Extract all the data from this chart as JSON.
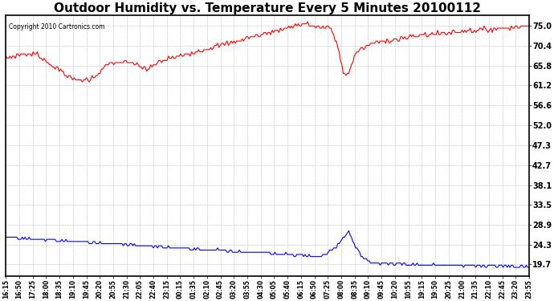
{
  "title": "Outdoor Humidity vs. Temperature Every 5 Minutes 20100112",
  "copyright_text": "Copyright 2010 Cartronics.com",
  "title_fontsize": 11,
  "yticks": [
    19.7,
    24.3,
    28.9,
    33.5,
    38.1,
    42.7,
    47.3,
    52.0,
    56.6,
    61.2,
    65.8,
    70.4,
    75.0
  ],
  "ylim": [
    17.0,
    77.5
  ],
  "background_color": "#ffffff",
  "plot_bg_color": "#ffffff",
  "grid_color": "#aaaaaa",
  "red_color": "#ff0000",
  "blue_color": "#0000ff",
  "xtick_labels": [
    "16:15",
    "16:50",
    "17:25",
    "18:00",
    "18:35",
    "19:10",
    "19:45",
    "20:20",
    "20:55",
    "21:30",
    "22:05",
    "22:40",
    "23:15",
    "00:15",
    "01:35",
    "02:10",
    "02:45",
    "03:20",
    "03:55",
    "04:30",
    "05:05",
    "05:40",
    "06:15",
    "06:50",
    "07:25",
    "08:00",
    "08:35",
    "09:10",
    "09:45",
    "10:20",
    "10:55",
    "19:15",
    "19:50",
    "20:25",
    "21:00",
    "21:35",
    "22:10",
    "22:45",
    "23:20",
    "23:55"
  ]
}
